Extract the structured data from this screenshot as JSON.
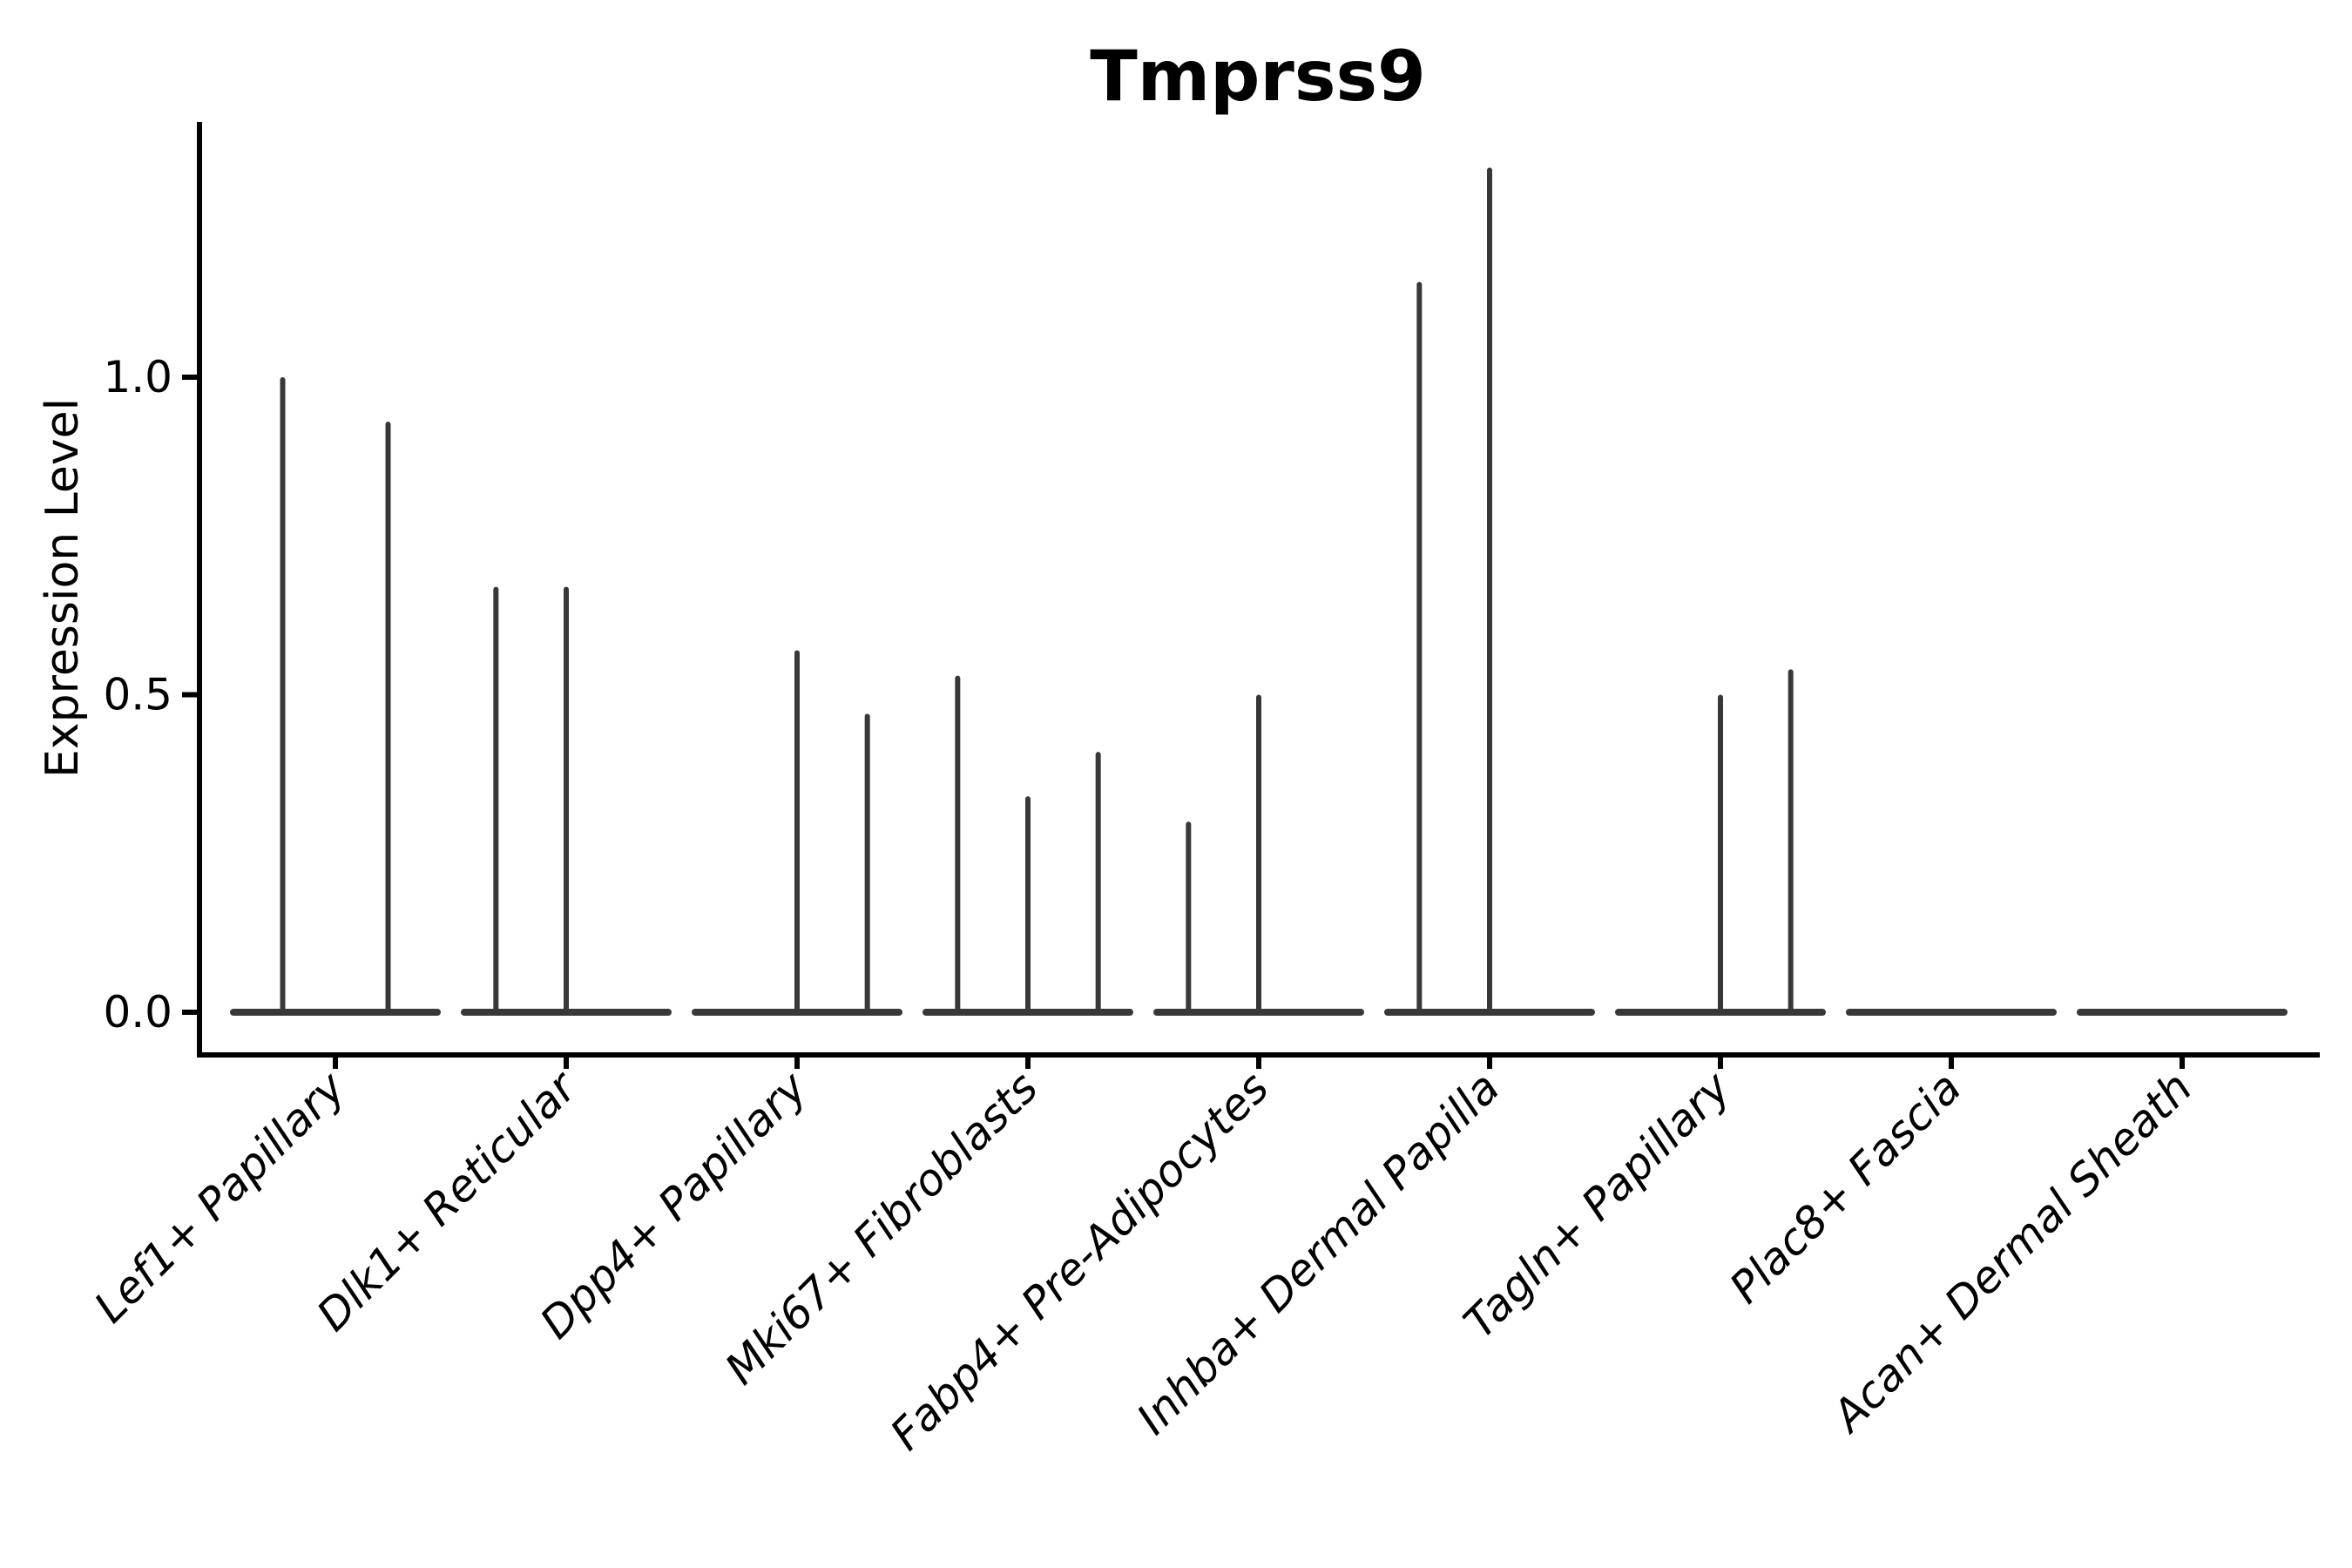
{
  "figure": {
    "background": "#ffffff",
    "title": "Tmprss9",
    "ylabel": "Expression Level"
  },
  "chart_data": {
    "type": "violin",
    "title": "Tmprss9",
    "xlabel": "",
    "ylabel": "Expression Level",
    "ylim": [
      -0.067,
      1.4
    ],
    "grid": false,
    "legend_position": "none",
    "x_tick_rotation_deg": 45,
    "x_tick_style": "italic",
    "yticks": [
      {
        "value": 0.0,
        "label": "0.0"
      },
      {
        "value": 0.5,
        "label": "0.5"
      },
      {
        "value": 1.0,
        "label": "1.0"
      }
    ],
    "categories": [
      "Lef1+ Papillary",
      "Dlk1+ Reticular",
      "Dpp4+ Papillary",
      "Mki67+ Fibroblasts",
      "Fabp4+ Pre-Adipocytes",
      "Inhba+ Dermal Papilla",
      "Tagln+ Papillary",
      "Plac8+ Fascia",
      "Acan+ Dermal Sheath"
    ],
    "series": [
      {
        "category": "Lef1+ Papillary",
        "violin_maxima": [
          1.0,
          0.93
        ]
      },
      {
        "category": "Dlk1+ Reticular",
        "violin_maxima": [
          0.67,
          0.67,
          0
        ]
      },
      {
        "category": "Dpp4+ Papillary",
        "violin_maxima": [
          0,
          0.57,
          0.47
        ]
      },
      {
        "category": "Mki67+ Fibroblasts",
        "violin_maxima": [
          0.53,
          0.34,
          0.41
        ]
      },
      {
        "category": "Fabp4+ Pre-Adipocytes",
        "violin_maxima": [
          0.3,
          0.5,
          0
        ]
      },
      {
        "category": "Inhba+ Dermal Papilla",
        "violin_maxima": [
          1.15,
          1.33,
          0
        ]
      },
      {
        "category": "Tagln+ Papillary",
        "violin_maxima": [
          0,
          0.5,
          0.54
        ]
      },
      {
        "category": "Plac8+ Fascia",
        "violin_maxima": [
          0,
          0,
          0
        ]
      },
      {
        "category": "Acan+ Dermal Sheath",
        "violin_maxima": [
          0,
          0,
          0
        ]
      }
    ],
    "colors": {
      "violin": "#383838",
      "axis": "#000000",
      "text": "#000000",
      "background": "#ffffff"
    }
  }
}
